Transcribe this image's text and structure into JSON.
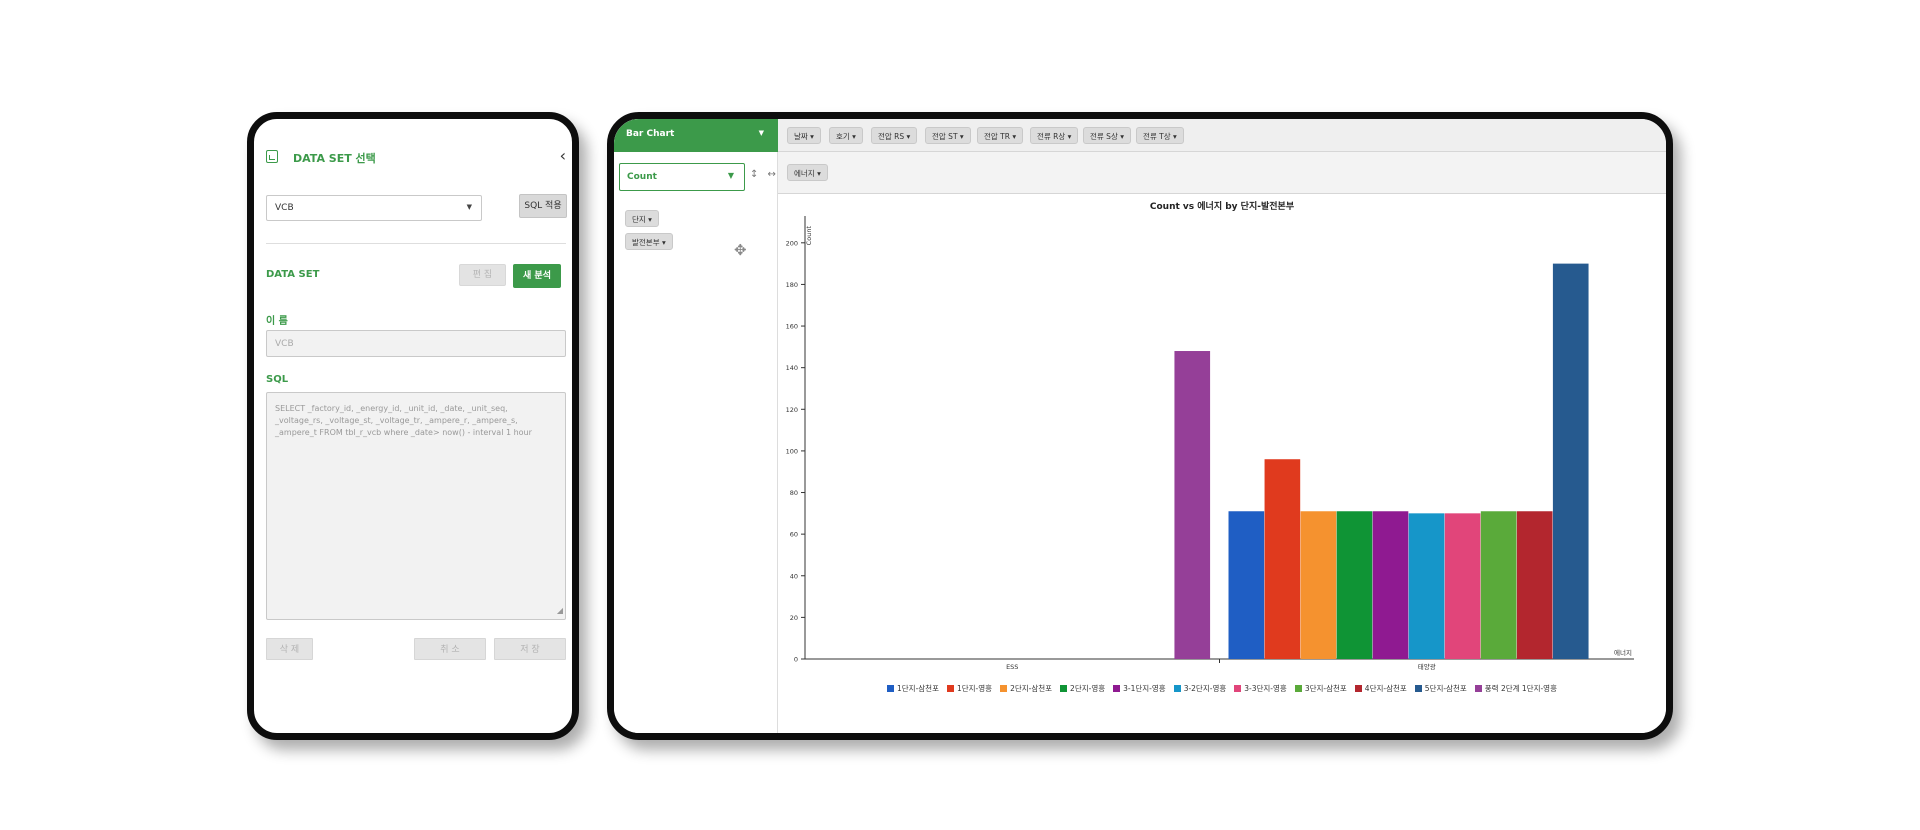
{
  "left_panel": {
    "title": "DATA SET 선택",
    "back_icon": "‹",
    "dataset_select": {
      "value": "VCB"
    },
    "sql_apply_label": "SQL 적용",
    "dataset_section_label": "DATA SET",
    "edit_label": "편 집",
    "new_analysis_label": "새 분석",
    "name_label": "이 름",
    "name_placeholder": "VCB",
    "sql_label": "SQL",
    "sql_text": "SELECT _factory_id, _energy_id, _unit_id, _date, _unit_seq, _voltage_rs, _voltage_st, _voltage_tr, _ampere_r, _ampere_s, _ampere_t FROM tbl_r_vcb where _date> now() - interval 1 hour",
    "delete_label": "삭 제",
    "cancel_label": "취 소",
    "save_label": "저 장"
  },
  "right_panel": {
    "chart_type_label": "Bar Chart",
    "aggregator_label": "Count",
    "sort_icons": "↕ ↔",
    "top_attributes": [
      "날짜 ▾",
      "호기 ▾",
      "전압 RS ▾",
      "전압 ST ▾",
      "전압 TR ▾",
      "전류 R상 ▾",
      "전류 S상 ▾",
      "전류 T상 ▾"
    ],
    "column_attributes": [
      "에너지 ▾"
    ],
    "row_attributes": [
      "단지 ▾",
      "발전본부 ▾"
    ]
  },
  "chart_data": {
    "type": "bar",
    "title": "Count vs 에너지 by 단지-발전본부",
    "xlabel": "에너지",
    "ylabel": "Count",
    "ylim": [
      0,
      210
    ],
    "yticks": [
      0,
      20,
      40,
      60,
      80,
      100,
      120,
      140,
      160,
      180,
      200
    ],
    "categories": [
      "ESS",
      "태양광"
    ],
    "series": [
      {
        "name": "1단지-삼천포",
        "color": "#1f5ec4",
        "values": [
          null,
          71
        ]
      },
      {
        "name": "1단지-영흥",
        "color": "#e03a1e",
        "values": [
          null,
          96
        ]
      },
      {
        "name": "2단지-삼천포",
        "color": "#f5922f",
        "values": [
          null,
          71
        ]
      },
      {
        "name": "2단지-영흥",
        "color": "#0f9435",
        "values": [
          null,
          71
        ]
      },
      {
        "name": "3-1단지-영흥",
        "color": "#8f1a91",
        "values": [
          null,
          71
        ]
      },
      {
        "name": "3-2단지-영흥",
        "color": "#1696c9",
        "values": [
          null,
          70
        ]
      },
      {
        "name": "3-3단지-영흥",
        "color": "#e1457a",
        "values": [
          null,
          70
        ]
      },
      {
        "name": "3단지-삼천포",
        "color": "#5aaa3a",
        "values": [
          null,
          71
        ]
      },
      {
        "name": "4단지-삼천포",
        "color": "#b3262e",
        "values": [
          null,
          71
        ]
      },
      {
        "name": "5단지-삼천포",
        "color": "#265a8f",
        "values": [
          null,
          190
        ]
      },
      {
        "name": "풍력 2단계 1단지-영흥",
        "color": "#953f98",
        "values": [
          148,
          null
        ]
      }
    ]
  }
}
